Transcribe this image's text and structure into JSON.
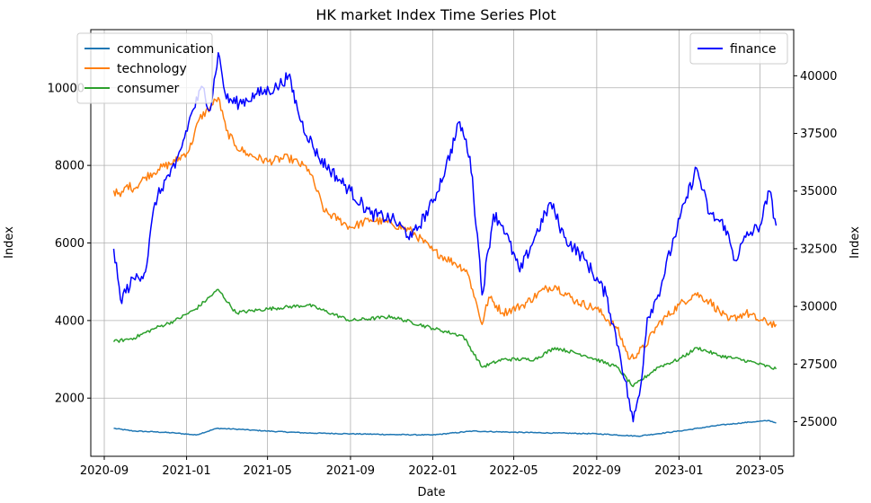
{
  "chart_data": {
    "type": "line",
    "title": "HK market Index Time Series Plot",
    "xlabel": "Date",
    "ylabel_left": "Index",
    "ylabel_right": "Index",
    "x_ticks": [
      "2020-09",
      "2021-01",
      "2021-05",
      "2021-09",
      "2022-01",
      "2022-05",
      "2022-09",
      "2023-01",
      "2023-05"
    ],
    "y_left_ticks": [
      2000,
      4000,
      6000,
      8000,
      10000
    ],
    "y_right_ticks": [
      25000,
      27500,
      30000,
      32500,
      35000,
      37500,
      40000
    ],
    "xlim": [
      "2020-08-12",
      "2023-06-20"
    ],
    "ylim_left": [
      500,
      11500
    ],
    "ylim_right": [
      23500,
      42000
    ],
    "grid": true,
    "legend_left_placement": "top-left",
    "legend_right_placement": "top-right",
    "series": [
      {
        "name": "communication",
        "axis": "left",
        "color": "#1f77b4",
        "points": [
          [
            "2020-09-15",
            1220
          ],
          [
            "2020-10-15",
            1150
          ],
          [
            "2020-11-15",
            1130
          ],
          [
            "2020-12-15",
            1100
          ],
          [
            "2021-01-15",
            1050
          ],
          [
            "2021-02-15",
            1220
          ],
          [
            "2021-03-15",
            1200
          ],
          [
            "2021-05-01",
            1150
          ],
          [
            "2021-07-01",
            1100
          ],
          [
            "2021-09-01",
            1080
          ],
          [
            "2021-11-01",
            1060
          ],
          [
            "2022-01-01",
            1050
          ],
          [
            "2022-03-01",
            1150
          ],
          [
            "2022-05-01",
            1120
          ],
          [
            "2022-07-01",
            1100
          ],
          [
            "2022-09-01",
            1080
          ],
          [
            "2022-11-01",
            1020
          ],
          [
            "2023-01-01",
            1150
          ],
          [
            "2023-03-01",
            1300
          ],
          [
            "2023-04-15",
            1380
          ],
          [
            "2023-05-15",
            1420
          ],
          [
            "2023-05-25",
            1360
          ]
        ]
      },
      {
        "name": "technology",
        "axis": "left",
        "color": "#ff7f0e",
        "points": [
          [
            "2020-09-15",
            7350
          ],
          [
            "2020-09-25",
            7200
          ],
          [
            "2020-10-05",
            7500
          ],
          [
            "2020-10-15",
            7400
          ],
          [
            "2020-11-01",
            7700
          ],
          [
            "2020-11-20",
            7900
          ],
          [
            "2020-12-15",
            8100
          ],
          [
            "2021-01-05",
            8400
          ],
          [
            "2021-01-20",
            9200
          ],
          [
            "2021-02-05",
            9500
          ],
          [
            "2021-02-17",
            9750
          ],
          [
            "2021-03-01",
            8900
          ],
          [
            "2021-03-15",
            8500
          ],
          [
            "2021-04-01",
            8300
          ],
          [
            "2021-05-01",
            8100
          ],
          [
            "2021-06-01",
            8200
          ],
          [
            "2021-07-01",
            7900
          ],
          [
            "2021-07-25",
            6800
          ],
          [
            "2021-08-15",
            6600
          ],
          [
            "2021-09-01",
            6400
          ],
          [
            "2021-10-01",
            6600
          ],
          [
            "2021-11-01",
            6500
          ],
          [
            "2021-12-01",
            6300
          ],
          [
            "2022-01-01",
            5800
          ],
          [
            "2022-02-01",
            5500
          ],
          [
            "2022-02-20",
            5300
          ],
          [
            "2022-03-01",
            4800
          ],
          [
            "2022-03-15",
            3900
          ],
          [
            "2022-03-25",
            4600
          ],
          [
            "2022-04-15",
            4200
          ],
          [
            "2022-05-15",
            4400
          ],
          [
            "2022-06-15",
            4800
          ],
          [
            "2022-07-01",
            4900
          ],
          [
            "2022-08-01",
            4500
          ],
          [
            "2022-09-01",
            4300
          ],
          [
            "2022-10-01",
            3800
          ],
          [
            "2022-10-20",
            3000
          ],
          [
            "2022-11-10",
            3300
          ],
          [
            "2022-12-01",
            3900
          ],
          [
            "2023-01-01",
            4400
          ],
          [
            "2023-01-25",
            4700
          ],
          [
            "2023-02-15",
            4500
          ],
          [
            "2023-03-15",
            4000
          ],
          [
            "2023-04-10",
            4200
          ],
          [
            "2023-05-01",
            4000
          ],
          [
            "2023-05-25",
            3900
          ]
        ]
      },
      {
        "name": "consumer",
        "axis": "left",
        "color": "#2ca02c",
        "points": [
          [
            "2020-09-15",
            3450
          ],
          [
            "2020-10-15",
            3550
          ],
          [
            "2020-11-15",
            3800
          ],
          [
            "2020-12-15",
            4000
          ],
          [
            "2021-01-15",
            4300
          ],
          [
            "2021-02-17",
            4800
          ],
          [
            "2021-03-15",
            4200
          ],
          [
            "2021-05-01",
            4300
          ],
          [
            "2021-07-01",
            4400
          ],
          [
            "2021-09-01",
            4000
          ],
          [
            "2021-11-01",
            4100
          ],
          [
            "2022-01-01",
            3800
          ],
          [
            "2022-02-15",
            3600
          ],
          [
            "2022-03-15",
            2800
          ],
          [
            "2022-04-15",
            3000
          ],
          [
            "2022-06-01",
            3000
          ],
          [
            "2022-07-01",
            3300
          ],
          [
            "2022-08-15",
            3100
          ],
          [
            "2022-10-01",
            2800
          ],
          [
            "2022-10-25",
            2300
          ],
          [
            "2022-12-01",
            2800
          ],
          [
            "2023-01-01",
            3000
          ],
          [
            "2023-01-28",
            3300
          ],
          [
            "2023-03-01",
            3100
          ],
          [
            "2023-04-15",
            2950
          ],
          [
            "2023-05-25",
            2750
          ]
        ]
      },
      {
        "name": "finance",
        "axis": "right",
        "color": "#0000ff",
        "points": [
          [
            "2020-09-15",
            32500
          ],
          [
            "2020-09-25",
            30300
          ],
          [
            "2020-10-15",
            31200
          ],
          [
            "2020-11-01",
            31500
          ],
          [
            "2020-11-15",
            34500
          ],
          [
            "2020-12-01",
            35500
          ],
          [
            "2020-12-15",
            36000
          ],
          [
            "2021-01-10",
            38500
          ],
          [
            "2021-01-25",
            39500
          ],
          [
            "2021-02-05",
            38500
          ],
          [
            "2021-02-17",
            41000
          ],
          [
            "2021-03-01",
            39000
          ],
          [
            "2021-03-20",
            38800
          ],
          [
            "2021-04-15",
            39200
          ],
          [
            "2021-05-15",
            39500
          ],
          [
            "2021-06-01",
            40000
          ],
          [
            "2021-06-20",
            38000
          ],
          [
            "2021-07-15",
            36500
          ],
          [
            "2021-08-15",
            35500
          ],
          [
            "2021-09-01",
            35000
          ],
          [
            "2021-10-01",
            34000
          ],
          [
            "2021-11-01",
            33800
          ],
          [
            "2021-12-01",
            33000
          ],
          [
            "2022-01-01",
            34500
          ],
          [
            "2022-01-20",
            36000
          ],
          [
            "2022-02-10",
            38000
          ],
          [
            "2022-02-25",
            36500
          ],
          [
            "2022-03-10",
            32500
          ],
          [
            "2022-03-15",
            30500
          ],
          [
            "2022-04-01",
            34000
          ],
          [
            "2022-04-15",
            33500
          ],
          [
            "2022-05-10",
            31500
          ],
          [
            "2022-06-01",
            33000
          ],
          [
            "2022-06-25",
            34500
          ],
          [
            "2022-07-15",
            33000
          ],
          [
            "2022-08-15",
            32000
          ],
          [
            "2022-09-15",
            30500
          ],
          [
            "2022-10-05",
            28000
          ],
          [
            "2022-10-25",
            25000
          ],
          [
            "2022-11-05",
            26500
          ],
          [
            "2022-11-15",
            29500
          ],
          [
            "2022-12-01",
            30500
          ],
          [
            "2022-12-25",
            33000
          ],
          [
            "2023-01-10",
            34500
          ],
          [
            "2023-01-27",
            36000
          ],
          [
            "2023-02-15",
            34000
          ],
          [
            "2023-03-10",
            33500
          ],
          [
            "2023-03-25",
            32000
          ],
          [
            "2023-04-10",
            33000
          ],
          [
            "2023-05-01",
            33500
          ],
          [
            "2023-05-15",
            35000
          ],
          [
            "2023-05-25",
            33500
          ]
        ]
      }
    ]
  }
}
